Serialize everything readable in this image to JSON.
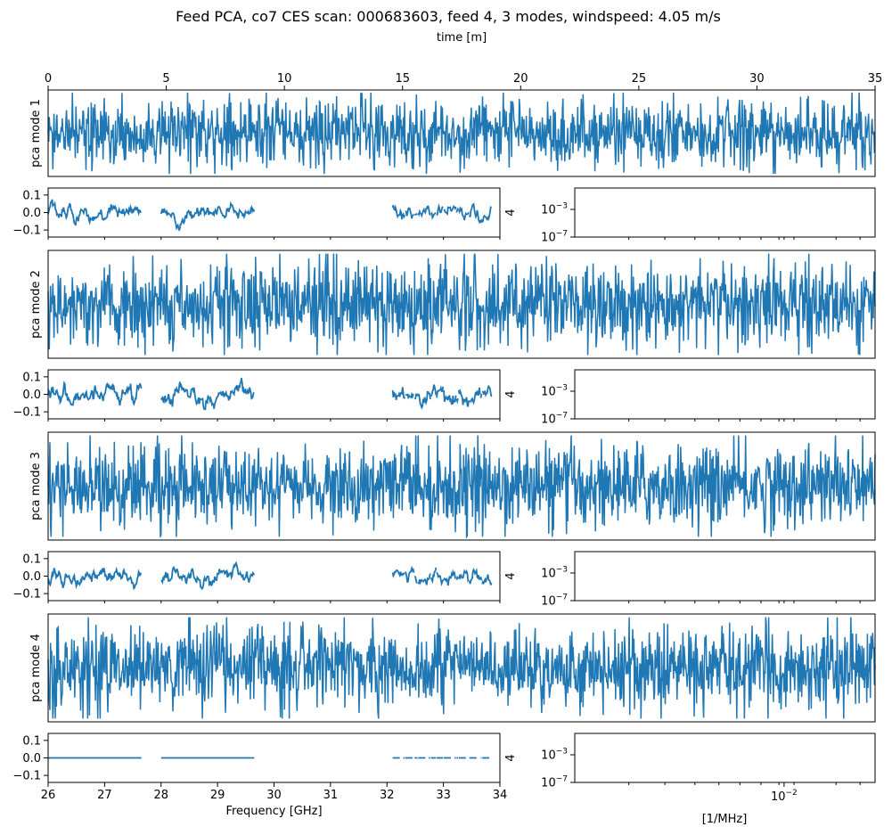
{
  "figure": {
    "title": "Feed PCA, co7 CES scan: 000683603, feed 4, 3 modes, windspeed: 4.05 m/s",
    "line_color": "#1f77b4"
  },
  "chart_data": [
    {
      "type": "line",
      "role": "time-stream",
      "xlabel": "time [m]",
      "ylabel": "pca mode 1",
      "xlim": [
        0,
        35
      ],
      "xticks": [
        0,
        5,
        10,
        15,
        20,
        25,
        30,
        35
      ],
      "seed": 11
    },
    {
      "type": "line",
      "role": "frequency-spectrum",
      "xlabel": "",
      "ylabel": "",
      "xlim": [
        26,
        34
      ],
      "ylim": [
        -0.14,
        0.14
      ],
      "yticks": [
        -0.1,
        0.0,
        0.1
      ],
      "ytick_labels": [
        "−0.1",
        "0.0",
        "0.1"
      ],
      "segments": [
        [
          26.0,
          27.65
        ],
        [
          28.0,
          29.65
        ],
        [
          32.1,
          33.85
        ]
      ],
      "amplitude": 0.045,
      "seed": 21
    },
    {
      "type": "line",
      "role": "power-spectrum",
      "ylabel": "4",
      "yscale": "log",
      "ytick_labels": [
        "10−3",
        "10−7"
      ],
      "yticks": [
        0.001,
        1e-07
      ]
    },
    {
      "type": "line",
      "role": "time-stream",
      "ylabel": "pca mode 2",
      "xlim": [
        0,
        35
      ],
      "seed": 12
    },
    {
      "type": "line",
      "role": "frequency-spectrum",
      "xlim": [
        26,
        34
      ],
      "ylim": [
        -0.14,
        0.14
      ],
      "yticks": [
        -0.1,
        0.0,
        0.1
      ],
      "ytick_labels": [
        "−0.1",
        "0.0",
        "0.1"
      ],
      "segments": [
        [
          26.0,
          27.65
        ],
        [
          28.0,
          29.65
        ],
        [
          32.1,
          33.85
        ]
      ],
      "amplitude": 0.05,
      "seed": 22
    },
    {
      "type": "line",
      "role": "power-spectrum",
      "ylabel": "4",
      "yscale": "log",
      "ytick_labels": [
        "10−3",
        "10−7"
      ],
      "yticks": [
        0.001,
        1e-07
      ]
    },
    {
      "type": "line",
      "role": "time-stream",
      "ylabel": "pca mode 3",
      "xlim": [
        0,
        35
      ],
      "seed": 13
    },
    {
      "type": "line",
      "role": "frequency-spectrum",
      "xlim": [
        26,
        34
      ],
      "ylim": [
        -0.14,
        0.14
      ],
      "yticks": [
        -0.1,
        0.0,
        0.1
      ],
      "ytick_labels": [
        "−0.1",
        "0.0",
        "0.1"
      ],
      "segments": [
        [
          26.0,
          27.65
        ],
        [
          28.0,
          29.65
        ],
        [
          32.1,
          33.85
        ]
      ],
      "amplitude": 0.045,
      "seed": 23
    },
    {
      "type": "line",
      "role": "power-spectrum",
      "ylabel": "4",
      "yscale": "log",
      "ytick_labels": [
        "10−3",
        "10−7"
      ],
      "yticks": [
        0.001,
        1e-07
      ]
    },
    {
      "type": "line",
      "role": "time-stream",
      "ylabel": "pca mode 4",
      "xlim": [
        0,
        35
      ],
      "seed": 14
    },
    {
      "type": "line",
      "role": "frequency-spectrum",
      "xlabel": "Frequency [GHz]",
      "xlim": [
        26,
        34
      ],
      "ylim": [
        -0.14,
        0.14
      ],
      "yticks": [
        -0.1,
        0.0,
        0.1
      ],
      "ytick_labels": [
        "−0.1",
        "0.0",
        "0.1"
      ],
      "xticks": [
        26,
        27,
        28,
        29,
        30,
        31,
        32,
        33,
        34
      ],
      "segments": [
        [
          26.0,
          27.65
        ],
        [
          28.0,
          29.65
        ],
        [
          32.1,
          33.85
        ]
      ],
      "amplitude": 0.0,
      "seed": 24
    },
    {
      "type": "line",
      "role": "power-spectrum",
      "xlabel": "[1/MHz]",
      "ylabel": "4",
      "xscale": "log",
      "xtick_labels": [
        "10−2"
      ],
      "yscale": "log",
      "ytick_labels": [
        "10−3",
        "10−7"
      ],
      "yticks": [
        0.001,
        1e-07
      ]
    }
  ]
}
